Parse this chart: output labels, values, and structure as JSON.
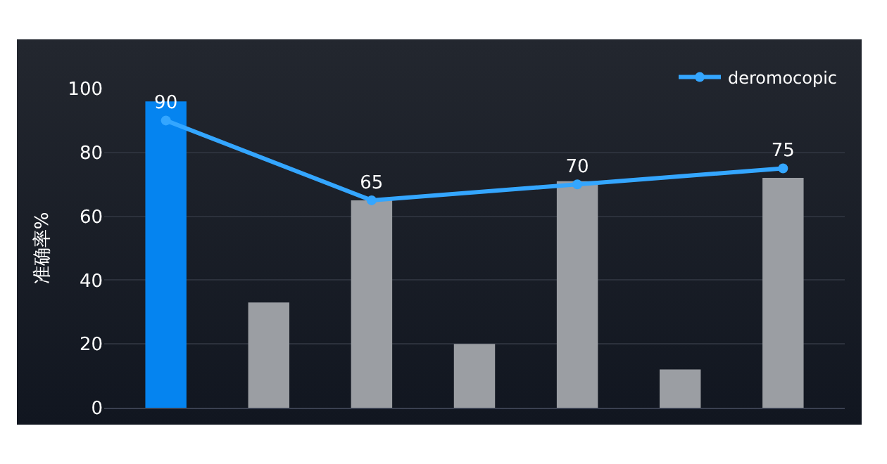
{
  "chart_data": {
    "type": "bar",
    "ylabel": "准确率%",
    "categories": [
      null,
      null,
      null,
      null,
      null,
      null,
      null
    ],
    "series": [
      {
        "colors": [
          "#0584f0",
          "#9b9ea3",
          "#9b9ea3",
          "#9b9ea3",
          "#9b9ea3",
          "#9b9ea3",
          "#9b9ea3"
        ],
        "values": [
          96,
          33,
          65,
          20,
          71,
          12,
          72
        ]
      },
      {
        "type": "line",
        "name": "deromocopic",
        "color": "#34a6ff",
        "values": [
          90,
          null,
          65,
          null,
          70,
          null,
          75
        ],
        "data_labels": true,
        "marker": "circle"
      }
    ],
    "ylim": [
      0,
      100
    ],
    "yticks": [
      0,
      20,
      40,
      60,
      80,
      100
    ],
    "grid": "y",
    "legend": "top right"
  }
}
